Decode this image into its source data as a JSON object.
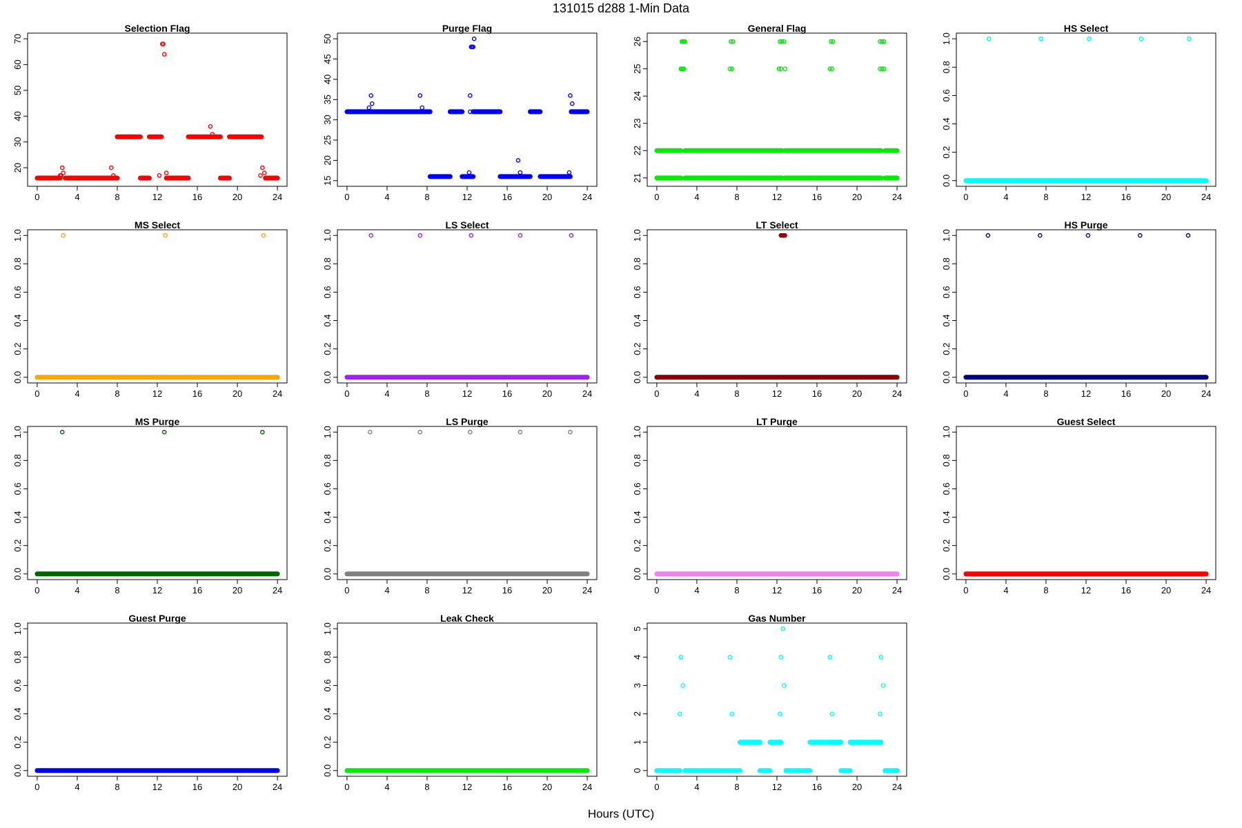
{
  "title": "131015   d288   1-Min Data",
  "xlabel": "Hours (UTC)",
  "chart_data": [
    {
      "type": "scatter",
      "title": "Selection Flag",
      "color": "#ff0000",
      "xlim": [
        0,
        24
      ],
      "ylim": [
        15,
        70
      ],
      "x_ticks": [
        0,
        4,
        8,
        12,
        16,
        20,
        24
      ],
      "y_ticks": [
        20,
        30,
        40,
        50,
        60,
        70
      ],
      "segments": [
        [
          0,
          2.3,
          16
        ],
        [
          2.8,
          8.0,
          16
        ],
        [
          8.0,
          10.3,
          32
        ],
        [
          10.3,
          11.2,
          16
        ],
        [
          11.2,
          12.4,
          32
        ],
        [
          12.9,
          15.1,
          16
        ],
        [
          15.1,
          18.3,
          32
        ],
        [
          18.3,
          19.2,
          16
        ],
        [
          19.2,
          22.4,
          32
        ],
        [
          22.8,
          24,
          16
        ]
      ],
      "points": [
        [
          2.3,
          17
        ],
        [
          2.4,
          17
        ],
        [
          2.5,
          20
        ],
        [
          2.6,
          18
        ],
        [
          7.4,
          20
        ],
        [
          7.6,
          17
        ],
        [
          7.7,
          16
        ],
        [
          12.2,
          17
        ],
        [
          12.5,
          68
        ],
        [
          12.6,
          68
        ],
        [
          12.7,
          64
        ],
        [
          12.9,
          18
        ],
        [
          17.3,
          36
        ],
        [
          17.5,
          33
        ],
        [
          22.3,
          17
        ],
        [
          22.5,
          20
        ],
        [
          22.7,
          18
        ]
      ]
    },
    {
      "type": "scatter",
      "title": "Purge Flag",
      "color": "#0000ff",
      "xlim": [
        0,
        24
      ],
      "ylim": [
        15,
        50
      ],
      "x_ticks": [
        0,
        4,
        8,
        12,
        16,
        20,
        24
      ],
      "y_ticks": [
        15,
        20,
        25,
        30,
        35,
        40,
        45,
        50
      ],
      "segments": [
        [
          0,
          8.3,
          32
        ],
        [
          8.3,
          10.3,
          16
        ],
        [
          10.3,
          11.5,
          32
        ],
        [
          11.5,
          12.6,
          16
        ],
        [
          12.6,
          15.3,
          32
        ],
        [
          15.3,
          18.3,
          16
        ],
        [
          18.3,
          19.3,
          32
        ],
        [
          19.3,
          22.3,
          16
        ],
        [
          22.4,
          24,
          32
        ]
      ],
      "points": [
        [
          2.2,
          33
        ],
        [
          2.4,
          36
        ],
        [
          2.5,
          34
        ],
        [
          7.3,
          36
        ],
        [
          7.5,
          33
        ],
        [
          12.2,
          17
        ],
        [
          12.3,
          36
        ],
        [
          12.3,
          32
        ],
        [
          12.4,
          48
        ],
        [
          12.5,
          48
        ],
        [
          12.6,
          48
        ],
        [
          12.7,
          50
        ],
        [
          17.1,
          20
        ],
        [
          17.3,
          17
        ],
        [
          22.2,
          17
        ],
        [
          22.3,
          36
        ],
        [
          22.5,
          34
        ],
        [
          22.4,
          32
        ]
      ]
    },
    {
      "type": "scatter",
      "title": "General Flag",
      "color": "#00ee00",
      "xlim": [
        0,
        24
      ],
      "ylim": [
        20.9,
        26.1
      ],
      "x_ticks": [
        0,
        4,
        8,
        12,
        16,
        20,
        24
      ],
      "y_ticks": [
        21,
        22,
        23,
        24,
        25,
        26
      ],
      "segments": [
        [
          0,
          2.4,
          21
        ],
        [
          0,
          2.4,
          22
        ],
        [
          2.8,
          12.5,
          21
        ],
        [
          2.8,
          12.5,
          22
        ],
        [
          12.8,
          22.4,
          21
        ],
        [
          12.8,
          22.4,
          22
        ],
        [
          22.8,
          24,
          21
        ],
        [
          22.8,
          24,
          22
        ]
      ],
      "points": [
        [
          2.4,
          25
        ],
        [
          2.5,
          25
        ],
        [
          2.6,
          25
        ],
        [
          2.7,
          25
        ],
        [
          2.5,
          26
        ],
        [
          2.6,
          26
        ],
        [
          2.7,
          26
        ],
        [
          2.8,
          26
        ],
        [
          7.3,
          25
        ],
        [
          7.5,
          25
        ],
        [
          7.4,
          26
        ],
        [
          7.6,
          26
        ],
        [
          12.2,
          25
        ],
        [
          12.4,
          25
        ],
        [
          12.3,
          26
        ],
        [
          12.5,
          26
        ],
        [
          12.7,
          26
        ],
        [
          12.8,
          25
        ],
        [
          17.3,
          25
        ],
        [
          17.5,
          25
        ],
        [
          17.4,
          26
        ],
        [
          17.6,
          26
        ],
        [
          22.3,
          25
        ],
        [
          22.5,
          25
        ],
        [
          22.7,
          25
        ],
        [
          22.3,
          26
        ],
        [
          22.5,
          26
        ],
        [
          22.7,
          26
        ]
      ]
    },
    {
      "type": "scatter",
      "title": "HS Select",
      "color": "#00ffff",
      "xlim": [
        0,
        24
      ],
      "ylim": [
        0,
        1
      ],
      "x_ticks": [
        0,
        4,
        8,
        12,
        16,
        20,
        24
      ],
      "y_ticks": [
        0.0,
        0.2,
        0.4,
        0.6,
        0.8,
        1.0
      ],
      "segments": [
        [
          0,
          24,
          0
        ]
      ],
      "points": [
        [
          2.3,
          1
        ],
        [
          7.5,
          1
        ],
        [
          12.3,
          1
        ],
        [
          17.5,
          1
        ],
        [
          22.3,
          1
        ]
      ]
    },
    {
      "type": "scatter",
      "title": "MS Select",
      "color": "#ffa500",
      "xlim": [
        0,
        24
      ],
      "ylim": [
        0,
        1
      ],
      "x_ticks": [
        0,
        4,
        8,
        12,
        16,
        20,
        24
      ],
      "y_ticks": [
        0.0,
        0.2,
        0.4,
        0.6,
        0.8,
        1.0
      ],
      "segments": [
        [
          0,
          24,
          0
        ]
      ],
      "points": [
        [
          2.6,
          1
        ],
        [
          12.8,
          1
        ],
        [
          22.6,
          1
        ]
      ]
    },
    {
      "type": "scatter",
      "title": "LS Select",
      "color": "#a020f0",
      "xlim": [
        0,
        24
      ],
      "ylim": [
        0,
        1
      ],
      "x_ticks": [
        0,
        4,
        8,
        12,
        16,
        20,
        24
      ],
      "y_ticks": [
        0.0,
        0.2,
        0.4,
        0.6,
        0.8,
        1.0
      ],
      "segments": [
        [
          0,
          24,
          0
        ]
      ],
      "points": [
        [
          2.4,
          1
        ],
        [
          7.3,
          1
        ],
        [
          12.4,
          1
        ],
        [
          17.3,
          1
        ],
        [
          22.4,
          1
        ]
      ]
    },
    {
      "type": "scatter",
      "title": "LT Select",
      "color": "#8b0000",
      "xlim": [
        0,
        24
      ],
      "ylim": [
        0,
        1
      ],
      "x_ticks": [
        0,
        4,
        8,
        12,
        16,
        20,
        24
      ],
      "y_ticks": [
        0.0,
        0.2,
        0.4,
        0.6,
        0.8,
        1.0
      ],
      "segments": [
        [
          0,
          24,
          0
        ]
      ],
      "points": [
        [
          12.4,
          1
        ],
        [
          12.5,
          1
        ],
        [
          12.6,
          1
        ],
        [
          12.7,
          1
        ],
        [
          12.8,
          1
        ]
      ]
    },
    {
      "type": "scatter",
      "title": "HS Purge",
      "color": "#000080",
      "xlim": [
        0,
        24
      ],
      "ylim": [
        0,
        1
      ],
      "x_ticks": [
        0,
        4,
        8,
        12,
        16,
        20,
        24
      ],
      "y_ticks": [
        0.0,
        0.2,
        0.4,
        0.6,
        0.8,
        1.0
      ],
      "segments": [
        [
          0,
          24,
          0
        ]
      ],
      "points": [
        [
          2.2,
          1
        ],
        [
          7.4,
          1
        ],
        [
          12.2,
          1
        ],
        [
          17.4,
          1
        ],
        [
          22.2,
          1
        ]
      ]
    },
    {
      "type": "scatter",
      "title": "MS Purge",
      "color": "#006400",
      "xlim": [
        0,
        24
      ],
      "ylim": [
        0,
        1
      ],
      "x_ticks": [
        0,
        4,
        8,
        12,
        16,
        20,
        24
      ],
      "y_ticks": [
        0.0,
        0.2,
        0.4,
        0.6,
        0.8,
        1.0
      ],
      "segments": [
        [
          0,
          24,
          0
        ]
      ],
      "points": [
        [
          2.5,
          1
        ],
        [
          12.7,
          1
        ],
        [
          22.5,
          1
        ]
      ]
    },
    {
      "type": "scatter",
      "title": "LS Purge",
      "color": "#808080",
      "xlim": [
        0,
        24
      ],
      "ylim": [
        0,
        1
      ],
      "x_ticks": [
        0,
        4,
        8,
        12,
        16,
        20,
        24
      ],
      "y_ticks": [
        0.0,
        0.2,
        0.4,
        0.6,
        0.8,
        1.0
      ],
      "segments": [
        [
          0,
          24,
          0
        ]
      ],
      "points": [
        [
          2.3,
          1
        ],
        [
          7.3,
          1
        ],
        [
          12.3,
          1
        ],
        [
          17.3,
          1
        ],
        [
          22.3,
          1
        ]
      ]
    },
    {
      "type": "scatter",
      "title": "LT Purge",
      "color": "#ee82ee",
      "xlim": [
        0,
        24
      ],
      "ylim": [
        0,
        1
      ],
      "x_ticks": [
        0,
        4,
        8,
        12,
        16,
        20,
        24
      ],
      "y_ticks": [
        0.0,
        0.2,
        0.4,
        0.6,
        0.8,
        1.0
      ],
      "segments": [
        [
          0,
          24,
          0
        ]
      ],
      "points": []
    },
    {
      "type": "scatter",
      "title": "Guest Select",
      "color": "#ff0000",
      "xlim": [
        0,
        24
      ],
      "ylim": [
        0,
        1
      ],
      "x_ticks": [
        0,
        4,
        8,
        12,
        16,
        20,
        24
      ],
      "y_ticks": [
        0.0,
        0.2,
        0.4,
        0.6,
        0.8,
        1.0
      ],
      "segments": [
        [
          0,
          24,
          0
        ]
      ],
      "points": []
    },
    {
      "type": "scatter",
      "title": "Guest Purge",
      "color": "#0000ff",
      "xlim": [
        0,
        24
      ],
      "ylim": [
        0,
        1
      ],
      "x_ticks": [
        0,
        4,
        8,
        12,
        16,
        20,
        24
      ],
      "y_ticks": [
        0.0,
        0.2,
        0.4,
        0.6,
        0.8,
        1.0
      ],
      "segments": [
        [
          0,
          24,
          0
        ]
      ],
      "points": []
    },
    {
      "type": "scatter",
      "title": "Leak Check",
      "color": "#00ee00",
      "xlim": [
        0,
        24
      ],
      "ylim": [
        0,
        1
      ],
      "x_ticks": [
        0,
        4,
        8,
        12,
        16,
        20,
        24
      ],
      "y_ticks": [
        0.0,
        0.2,
        0.4,
        0.6,
        0.8,
        1.0
      ],
      "segments": [
        [
          0,
          24,
          0
        ]
      ],
      "points": []
    },
    {
      "type": "scatter",
      "title": "Gas Number",
      "color": "#00ffff",
      "xlim": [
        0,
        24
      ],
      "ylim": [
        0,
        5
      ],
      "x_ticks": [
        0,
        4,
        8,
        12,
        16,
        20,
        24
      ],
      "y_ticks": [
        0,
        1,
        2,
        3,
        4,
        5
      ],
      "segments": [
        [
          0,
          2.3,
          0
        ],
        [
          2.8,
          7.4,
          0
        ],
        [
          7.6,
          8.3,
          0
        ],
        [
          8.3,
          10.3,
          1
        ],
        [
          10.3,
          11.3,
          0
        ],
        [
          11.3,
          12.4,
          1
        ],
        [
          12.9,
          15.3,
          0
        ],
        [
          15.3,
          17.6,
          1
        ],
        [
          17.6,
          18.4,
          1
        ],
        [
          18.4,
          19.3,
          0
        ],
        [
          19.3,
          22.4,
          1
        ],
        [
          22.8,
          24,
          0
        ]
      ],
      "points": [
        [
          2.3,
          2
        ],
        [
          2.4,
          4
        ],
        [
          2.6,
          3
        ],
        [
          7.3,
          4
        ],
        [
          7.5,
          2
        ],
        [
          12.3,
          2
        ],
        [
          12.4,
          4
        ],
        [
          12.6,
          5
        ],
        [
          12.7,
          3
        ],
        [
          17.3,
          4
        ],
        [
          17.5,
          2
        ],
        [
          22.3,
          2
        ],
        [
          22.4,
          4
        ],
        [
          22.6,
          3
        ]
      ]
    }
  ]
}
